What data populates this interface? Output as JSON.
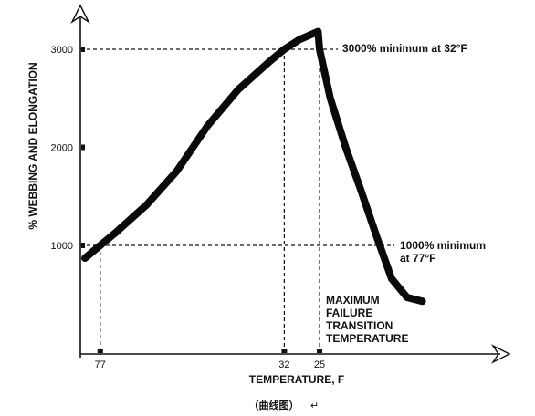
{
  "chart_data": {
    "type": "line",
    "title": "",
    "xlabel": "TEMPERATURE, F",
    "ylabel": "% WEBBING AND ELONGATION",
    "caption": "（曲线图）",
    "paragraph_mark": "↵",
    "y_ticks": [
      "1000",
      "2000",
      "3000"
    ],
    "x_ticks": [
      "77",
      "32",
      "25"
    ],
    "ylim": [
      0,
      3300
    ],
    "grid": false,
    "series": [
      {
        "values": [
          {
            "x": 0,
            "y": 870
          },
          {
            "x": 1,
            "y": 1000
          },
          {
            "x": 2,
            "y": 1130
          },
          {
            "x": 4,
            "y": 1410
          },
          {
            "x": 6,
            "y": 1760
          },
          {
            "x": 8,
            "y": 2220
          },
          {
            "x": 10,
            "y": 2590
          },
          {
            "x": 12,
            "y": 2870
          },
          {
            "x": 13,
            "y": 3000
          },
          {
            "x": 14,
            "y": 3100
          },
          {
            "x": 15.2,
            "y": 3180
          },
          {
            "x": 15.3,
            "y": 3000
          },
          {
            "x": 16,
            "y": 2500
          },
          {
            "x": 17,
            "y": 2000
          },
          {
            "x": 18,
            "y": 1560
          },
          {
            "x": 19,
            "y": 1100
          },
          {
            "x": 20,
            "y": 660
          },
          {
            "x": 21,
            "y": 470
          },
          {
            "x": 22,
            "y": 430
          }
        ]
      }
    ],
    "reference_lines": [
      {
        "x": 1,
        "y": 1000,
        "label_lines": [
          "1000% minimum",
          "at 77°F"
        ]
      },
      {
        "x": 13,
        "y": 3000,
        "label_lines": [
          "3000% minimum at 32°F"
        ]
      },
      {
        "x": 15.3,
        "y": 3000,
        "label_lines": [
          "MAXIMUM",
          "FAILURE",
          "TRANSITION",
          "TEMPERATURE"
        ]
      }
    ],
    "x_tick_positions": [
      1,
      13,
      15.3
    ]
  }
}
